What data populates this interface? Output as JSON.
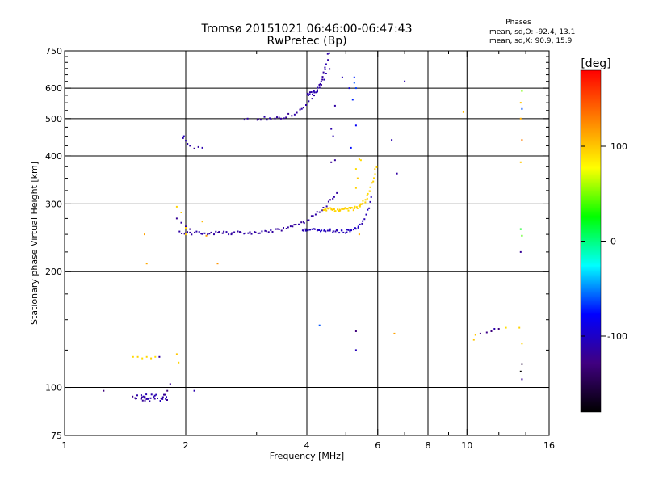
{
  "chart_data": {
    "type": "scatter",
    "title": "Tromsø 20151021 06:46:00-06:47:43",
    "subtitle": "RwPretec (Bp)",
    "xlabel": "Frequency [MHz]",
    "ylabel": "Stationary phase Virtual Height [km]",
    "x_scale": "log",
    "y_scale": "log",
    "xlim": [
      1,
      16
    ],
    "ylim": [
      75,
      750
    ],
    "x_ticks": [
      1,
      2,
      4,
      6,
      8,
      10,
      16
    ],
    "x_minor_ticks": [
      3,
      5,
      7,
      9,
      12,
      14
    ],
    "y_ticks": [
      75,
      100,
      200,
      300,
      400,
      500,
      600,
      750
    ],
    "y_minor_ticks": [
      125,
      150,
      175,
      225,
      250,
      275,
      325,
      350,
      375,
      425,
      450,
      475,
      525,
      550,
      575,
      625,
      650,
      675,
      700,
      725
    ],
    "grid_x": [
      2,
      4,
      6,
      8,
      10
    ],
    "grid_y": [
      100,
      200,
      300,
      400,
      500,
      600
    ],
    "grid": true,
    "annotation": {
      "title": "Phases",
      "line1": "mean, sd,O: -92.4, 13.1",
      "line2": "mean, sd,X:  90.9, 15.9"
    },
    "colorbar": {
      "label": "[deg]",
      "ticks": [
        100,
        0,
        -100
      ],
      "range": [
        -180,
        180
      ],
      "colors_top_to_bottom": [
        "#ff0000",
        "#ff8000",
        "#ffff00",
        "#00ff00",
        "#00ffff",
        "#0000ff",
        "#400080",
        "#000000"
      ]
    },
    "series": [
      {
        "traces": [
          {
            "x0": 1.93,
            "x1": 4.75,
            "h": 252,
            "hc": 247,
            "p": 2.0,
            "n": 75,
            "phase": -115,
            "spread": 5
          },
          {
            "x0": 3.9,
            "x1": 5.8,
            "h": 258,
            "hc": 240,
            "p": 2.6,
            "n": 50,
            "phase": -105,
            "spread": 7
          },
          {
            "x0": 3.0,
            "x1": 4.55,
            "h": 500,
            "hc": 520,
            "p": 1.3,
            "n": 30,
            "phase": -115,
            "spread": 6
          },
          {
            "x0": 4.0,
            "x1": 4.55,
            "h": 580,
            "hc": 580,
            "p": 1.0,
            "n": 25,
            "phase": -112,
            "spread": 7
          }
        ]
      },
      {
        "trace": {
          "x0": 4.4,
          "x1": 5.95,
          "h": 290,
          "hc": 290,
          "p": 2.3,
          "n": 60,
          "phase": 95,
          "spread": 6
        }
      }
    ],
    "scatter_points": [
      [
        1.9,
        275,
        -120
      ],
      [
        1.95,
        268,
        -115
      ],
      [
        2.0,
        262,
        -118
      ],
      [
        2.05,
        258,
        -120
      ],
      [
        1.97,
        445,
        -110
      ],
      [
        2.0,
        438,
        -108
      ],
      [
        2.02,
        430,
        -112
      ],
      [
        1.98,
        450,
        -105
      ],
      [
        2.05,
        425,
        -115
      ],
      [
        2.1,
        418,
        -120
      ],
      [
        2.15,
        422,
        -115
      ],
      [
        2.2,
        420,
        -110
      ],
      [
        2.8,
        497,
        -110
      ],
      [
        2.85,
        500,
        -115
      ],
      [
        4.6,
        385,
        -120
      ],
      [
        4.7,
        390,
        -118
      ],
      [
        4.65,
        450,
        -110
      ],
      [
        4.6,
        470,
        -112
      ],
      [
        4.7,
        540,
        -115
      ],
      [
        4.9,
        640,
        -108
      ],
      [
        5.1,
        600,
        -90
      ],
      [
        5.25,
        620,
        -60
      ],
      [
        5.2,
        560,
        -70
      ],
      [
        5.3,
        480,
        -80
      ],
      [
        5.15,
        420,
        -75
      ],
      [
        5.3,
        600,
        -65
      ],
      [
        5.25,
        640,
        -70
      ],
      [
        5.3,
        330,
        95
      ],
      [
        5.35,
        350,
        100
      ],
      [
        5.3,
        370,
        90
      ],
      [
        5.4,
        392,
        95
      ],
      [
        5.45,
        390,
        92
      ],
      [
        6.5,
        440,
        -110
      ],
      [
        6.7,
        360,
        -115
      ],
      [
        7.0,
        625,
        -112
      ],
      [
        5.4,
        250,
        110
      ],
      [
        1.58,
        250,
        115
      ],
      [
        1.6,
        210,
        112
      ],
      [
        2.0,
        260,
        98
      ],
      [
        2.2,
        270,
        105
      ],
      [
        2.25,
        248,
        115
      ],
      [
        2.4,
        210,
        120
      ],
      [
        1.9,
        295,
        95
      ],
      [
        1.95,
        285,
        100
      ],
      [
        2.0,
        250,
        97
      ],
      [
        4.3,
        145,
        -60
      ],
      [
        5.3,
        140,
        -130
      ],
      [
        5.3,
        125,
        -105
      ],
      [
        6.6,
        138,
        115
      ],
      [
        9.8,
        520,
        105
      ],
      [
        1.48,
        120,
        92
      ],
      [
        1.52,
        120,
        95
      ],
      [
        1.56,
        119,
        90
      ],
      [
        1.6,
        120,
        93
      ],
      [
        1.64,
        119,
        96
      ],
      [
        1.68,
        120,
        90
      ],
      [
        1.72,
        120,
        -115
      ],
      [
        1.9,
        122,
        100
      ],
      [
        1.92,
        116,
        95
      ],
      [
        1.25,
        98,
        -130
      ],
      [
        1.8,
        98,
        -130
      ],
      [
        1.83,
        102,
        -120
      ],
      [
        2.1,
        98,
        -110
      ],
      [
        10.8,
        138,
        -130
      ],
      [
        11.2,
        139,
        -125
      ],
      [
        11.5,
        140,
        -130
      ],
      [
        11.7,
        142,
        -110
      ],
      [
        12.0,
        142,
        -130
      ],
      [
        12.5,
        143,
        90
      ],
      [
        10.5,
        137,
        100
      ],
      [
        10.4,
        133,
        100
      ],
      [
        13.7,
        590,
        50
      ],
      [
        13.6,
        550,
        100
      ],
      [
        13.7,
        530,
        -60
      ],
      [
        13.6,
        500,
        110
      ],
      [
        13.7,
        440,
        130
      ],
      [
        13.6,
        385,
        100
      ],
      [
        13.6,
        258,
        20
      ],
      [
        13.7,
        248,
        40
      ],
      [
        13.6,
        225,
        -120
      ],
      [
        13.5,
        143,
        95
      ],
      [
        13.7,
        130,
        95
      ],
      [
        13.7,
        115,
        -160
      ],
      [
        13.6,
        110,
        -180
      ],
      [
        13.7,
        105,
        -120
      ]
    ],
    "cluster_100": {
      "x0": 1.45,
      "x1": 1.8,
      "h0": 92,
      "h1": 96,
      "n": 35,
      "phase": -115,
      "spread": 10
    }
  }
}
